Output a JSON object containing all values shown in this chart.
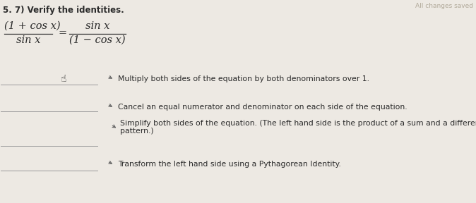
{
  "title": "5. 7) Verify the identities.",
  "eq_left_num": "(1 + cos x)",
  "eq_left_den": "sin x",
  "eq_right_num": "sin x",
  "eq_right_den": "(1 − cos x)",
  "equals": "=",
  "step1_text": "Multiply both sides of the equation by both denominators over 1.",
  "step2_text": "Cancel an equal numerator and denominator on each side of the equation.",
  "step3_line1": "Simplify both sides of the equation. (The left hand side is the product of a sum and a difference and follows a",
  "step3_line2": "pattern.)",
  "step4_text": "Transform the left hand side using a Pythagorean Identity.",
  "top_right_text": "All changes saved",
  "bg_color": "#ede9e3",
  "text_color": "#2a2a2a",
  "line_color": "#999999",
  "arrow_color": "#666666",
  "fs_title": 8.5,
  "fs_eq_num": 10.5,
  "fs_eq_den": 10.5,
  "fs_steps": 7.8,
  "fs_topright": 6.5
}
